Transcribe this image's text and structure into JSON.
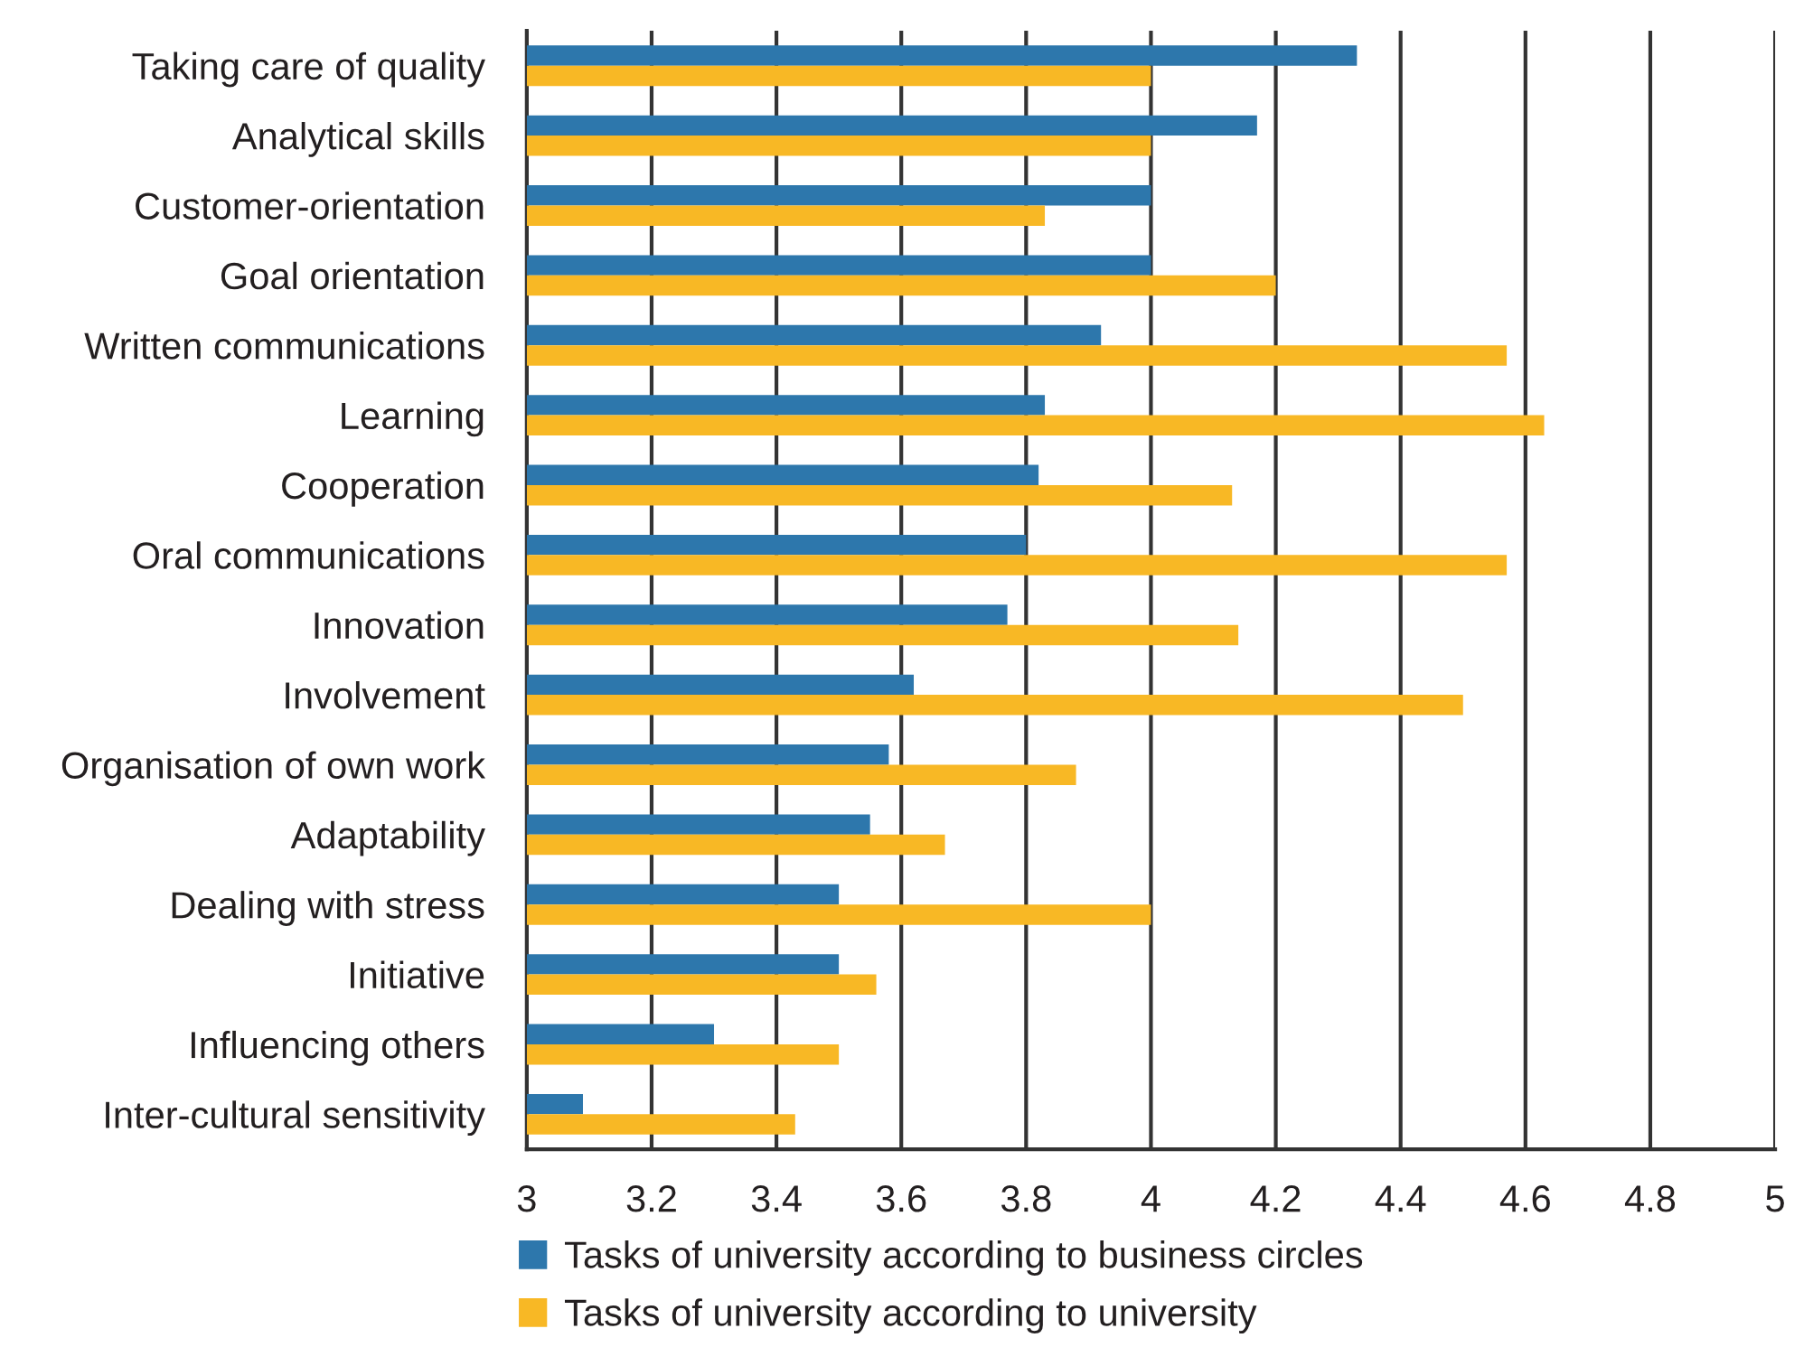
{
  "chart_data": {
    "type": "bar",
    "orientation": "horizontal",
    "categories": [
      "Taking care of quality",
      "Analytical skills",
      "Customer-orientation",
      "Goal orientation",
      "Written communications",
      "Learning",
      "Cooperation",
      "Oral communications",
      "Innovation",
      "Involvement",
      "Organisation of own work",
      "Adaptability",
      "Dealing with stress",
      "Initiative",
      "Influencing others",
      "Inter-cultural sensitivity"
    ],
    "series": [
      {
        "name": "Tasks of university according to business circles",
        "color": "#2d77ac",
        "values": [
          4.33,
          4.17,
          4.0,
          4.0,
          3.92,
          3.83,
          3.82,
          3.8,
          3.77,
          3.62,
          3.58,
          3.55,
          3.5,
          3.5,
          3.3,
          3.09
        ]
      },
      {
        "name": "Tasks of university according to university",
        "color": "#f8b825",
        "values": [
          4.0,
          4.0,
          3.83,
          4.2,
          4.57,
          4.63,
          4.13,
          4.57,
          4.14,
          4.5,
          3.88,
          3.67,
          4.0,
          3.56,
          3.5,
          3.43
        ]
      }
    ],
    "xlim": [
      3,
      5
    ],
    "xticks": [
      3,
      3.2,
      3.4,
      3.6,
      3.8,
      4,
      4.2,
      4.4,
      4.6,
      4.8,
      5
    ],
    "grid": "x",
    "legend": "bottom"
  }
}
